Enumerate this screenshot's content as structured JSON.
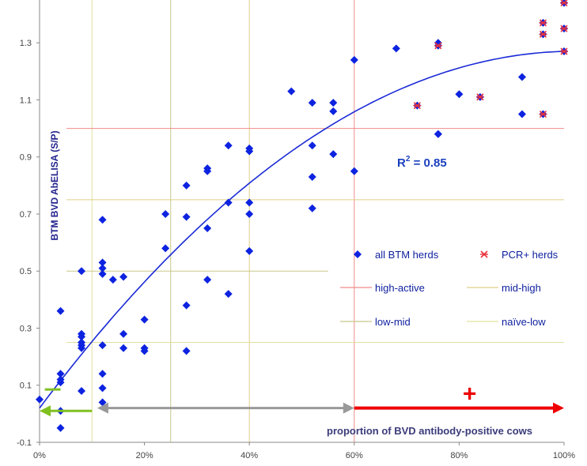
{
  "chart_data": {
    "type": "scatter",
    "title": "",
    "xlabel": "proportion of BVD antibody-positive cows",
    "ylabel": "BTM BVD AbELISA (S/P)",
    "xlim": [
      0,
      1
    ],
    "ylim": [
      -0.1,
      1.45
    ],
    "x_ticks": [
      "0%",
      "20%",
      "40%",
      "60%",
      "80%",
      "100%"
    ],
    "y_ticks": [
      "-0.1",
      "0.1",
      "0.3",
      "0.5",
      "0.7",
      "0.9",
      "1.1",
      "1.3"
    ],
    "annotation": {
      "r2_base": "R",
      "r2_sup": "2",
      "r2_rest": " = 0.85"
    },
    "plus_sign": "+",
    "colors": {
      "points": "#0d23e0",
      "pcr": "#e8323c",
      "trend": "#1a2ad6",
      "high_active": "#f08a8a",
      "mid_high": "#e0cf8a",
      "low_mid": "#c8c88a",
      "naive_low": "#e0e0a0",
      "green_arrow": "#80c020",
      "gray_arrow": "#999999",
      "red_arrow": "#ee0000"
    },
    "legend": [
      {
        "label": "all BTM herds",
        "marker": "diamond"
      },
      {
        "label": "PCR+ herds",
        "marker": "star"
      },
      {
        "label": "high-active",
        "marker": "line"
      },
      {
        "label": "mid-high",
        "marker": "line"
      },
      {
        "label": "low-mid",
        "marker": "line"
      },
      {
        "label": "naïve-low",
        "marker": "line"
      }
    ],
    "series": [
      {
        "name": "all BTM herds",
        "points": [
          [
            0.0,
            0.05
          ],
          [
            0.04,
            0.36
          ],
          [
            0.04,
            0.14
          ],
          [
            0.04,
            0.12
          ],
          [
            0.04,
            0.11
          ],
          [
            0.04,
            0.01
          ],
          [
            0.04,
            -0.05
          ],
          [
            0.08,
            0.5
          ],
          [
            0.08,
            0.28
          ],
          [
            0.08,
            0.27
          ],
          [
            0.08,
            0.25
          ],
          [
            0.08,
            0.24
          ],
          [
            0.08,
            0.23
          ],
          [
            0.08,
            0.08
          ],
          [
            0.12,
            0.68
          ],
          [
            0.12,
            0.53
          ],
          [
            0.12,
            0.51
          ],
          [
            0.12,
            0.49
          ],
          [
            0.12,
            0.24
          ],
          [
            0.12,
            0.14
          ],
          [
            0.12,
            0.09
          ],
          [
            0.12,
            0.04
          ],
          [
            0.14,
            0.47
          ],
          [
            0.16,
            0.48
          ],
          [
            0.16,
            0.28
          ],
          [
            0.16,
            0.23
          ],
          [
            0.2,
            0.33
          ],
          [
            0.2,
            0.23
          ],
          [
            0.2,
            0.22
          ],
          [
            0.24,
            0.7
          ],
          [
            0.24,
            0.58
          ],
          [
            0.28,
            0.8
          ],
          [
            0.28,
            0.69
          ],
          [
            0.28,
            0.38
          ],
          [
            0.28,
            0.22
          ],
          [
            0.32,
            0.86
          ],
          [
            0.32,
            0.85
          ],
          [
            0.32,
            0.65
          ],
          [
            0.32,
            0.47
          ],
          [
            0.36,
            0.94
          ],
          [
            0.36,
            0.74
          ],
          [
            0.36,
            0.42
          ],
          [
            0.4,
            0.93
          ],
          [
            0.4,
            0.92
          ],
          [
            0.4,
            0.74
          ],
          [
            0.4,
            0.7
          ],
          [
            0.4,
            0.57
          ],
          [
            0.48,
            1.13
          ],
          [
            0.52,
            1.09
          ],
          [
            0.52,
            0.94
          ],
          [
            0.52,
            0.83
          ],
          [
            0.52,
            0.72
          ],
          [
            0.56,
            1.09
          ],
          [
            0.56,
            1.06
          ],
          [
            0.56,
            0.91
          ],
          [
            0.6,
            1.24
          ],
          [
            0.6,
            0.85
          ],
          [
            0.68,
            1.28
          ],
          [
            0.72,
            1.08
          ],
          [
            0.76,
            1.3
          ],
          [
            0.76,
            1.29
          ],
          [
            0.76,
            0.98
          ],
          [
            0.76,
            0.98
          ],
          [
            0.8,
            1.12
          ],
          [
            0.84,
            1.11
          ],
          [
            0.92,
            1.18
          ],
          [
            0.92,
            1.05
          ],
          [
            0.96,
            1.37
          ],
          [
            0.96,
            1.33
          ],
          [
            0.96,
            1.05
          ],
          [
            1.0,
            1.44
          ],
          [
            1.0,
            1.35
          ],
          [
            1.0,
            1.27
          ]
        ]
      },
      {
        "name": "PCR+ herds",
        "points": [
          [
            0.72,
            1.08
          ],
          [
            0.76,
            1.29
          ],
          [
            0.84,
            1.11
          ],
          [
            0.96,
            1.37
          ],
          [
            0.96,
            1.33
          ],
          [
            0.96,
            1.05
          ],
          [
            1.0,
            1.44
          ],
          [
            1.0,
            1.35
          ],
          [
            1.0,
            1.27
          ]
        ]
      }
    ],
    "trendline": {
      "type": "polynomial",
      "coefficients": [
        0.02,
        2.45,
        -1.2
      ],
      "r2": 0.85
    },
    "reference_lines": {
      "vertical": [
        {
          "x": 0.1,
          "name": "naïve-low",
          "y_from": -0.1,
          "y_to": 1.45
        },
        {
          "x": 0.25,
          "name": "low-mid",
          "y_from": -0.1,
          "y_to": 1.45
        },
        {
          "x": 0.4,
          "name": "mid-high",
          "y_from": -0.1,
          "y_to": 1.45
        },
        {
          "x": 0.6,
          "name": "high-active",
          "y_from": -0.1,
          "y_to": 1.45
        }
      ],
      "horizontal": [
        {
          "y": 1.0,
          "name": "high-active",
          "x_from": 0.0,
          "x_to": 1.0
        },
        {
          "y": 0.75,
          "name": "mid-high",
          "x_from": 0.0,
          "x_to": 1.0
        },
        {
          "y": 0.5,
          "name": "low-mid",
          "x_from": 0.0,
          "x_to": 0.55
        },
        {
          "y": 0.25,
          "name": "naïve-low",
          "x_from": 0.0,
          "x_to": 1.0
        }
      ]
    },
    "arrows": [
      {
        "name": "green",
        "x_from": 0.1,
        "x_to": 0.0,
        "y": 0.01
      },
      {
        "name": "gray",
        "x_from": 0.11,
        "x_to": 0.6,
        "y": 0.02,
        "two_way": true
      },
      {
        "name": "red",
        "x_from": 0.6,
        "x_to": 1.0,
        "y": 0.02
      }
    ],
    "green_dash": {
      "x_from": 0.01,
      "x_to": 0.04,
      "y": 0.085
    },
    "plus_pos": {
      "x": 0.82,
      "y": 0.07
    },
    "grid": false
  }
}
